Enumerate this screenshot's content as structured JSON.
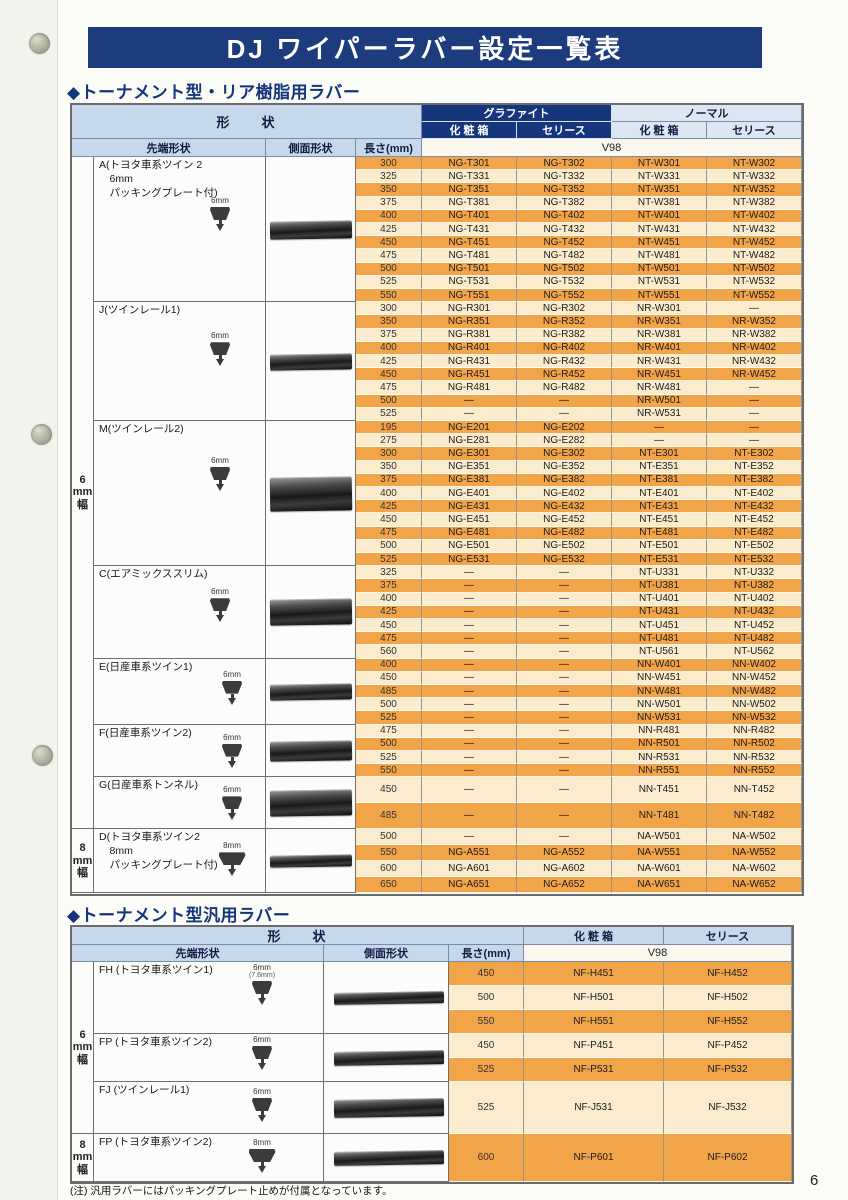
{
  "title": "DJ ワイパーラバー設定一覧表",
  "page_number": "6",
  "footnote": "(注) 汎用ラバーにはパッキングプレート止めが付属となっています。",
  "colors": {
    "banner_navy": "#1c3c7d",
    "graphite_header_navy": "#15357c",
    "header_light_blue": "#c8d8ec",
    "normal_header_light": "#dde7f3",
    "row_orange": "#f2a449",
    "row_cream": "#fbeccd"
  },
  "table1": {
    "section_title": "◆トーナメント型・リア樹脂用ラバー",
    "headers": {
      "shape": "形　　状",
      "tip_shape": "先端形状",
      "side_shape": "側面形状",
      "length": "長さ(mm)",
      "graphite": "グラファイト",
      "normal": "ノーマル",
      "box": "化 粧 箱",
      "cellophane": "セリース",
      "model": "V98"
    },
    "width_groups": [
      {
        "label_lines": [
          "6",
          "mm",
          "幅"
        ],
        "section_ids": [
          "A",
          "J",
          "M",
          "C",
          "E",
          "F",
          "G"
        ]
      },
      {
        "label_lines": [
          "8",
          "mm",
          "幅"
        ],
        "section_ids": [
          "D"
        ]
      }
    ],
    "sections": [
      {
        "id": "A",
        "label_lines": [
          "A(トヨタ車系ツイン 2",
          "　6mm",
          "　パッキングプレート付)"
        ],
        "tip_dim": "6mm",
        "rows": [
          [
            "300",
            "NG-T301",
            "NG-T302",
            "NT-W301",
            "NT-W302"
          ],
          [
            "325",
            "NG-T331",
            "NG-T332",
            "NT-W331",
            "NT-W332"
          ],
          [
            "350",
            "NG-T351",
            "NG-T352",
            "NT-W351",
            "NT-W352"
          ],
          [
            "375",
            "NG-T381",
            "NG-T382",
            "NT-W381",
            "NT-W382"
          ],
          [
            "400",
            "NG-T401",
            "NG-T402",
            "NT-W401",
            "NT-W402"
          ],
          [
            "425",
            "NG-T431",
            "NG-T432",
            "NT-W431",
            "NT-W432"
          ],
          [
            "450",
            "NG-T451",
            "NG-T452",
            "NT-W451",
            "NT-W452"
          ],
          [
            "475",
            "NG-T481",
            "NG-T482",
            "NT-W481",
            "NT-W482"
          ],
          [
            "500",
            "NG-T501",
            "NG-T502",
            "NT-W501",
            "NT-W502"
          ],
          [
            "525",
            "NG-T531",
            "NG-T532",
            "NT-W531",
            "NT-W532"
          ],
          [
            "550",
            "NG-T551",
            "NG-T552",
            "NT-W551",
            "NT-W552"
          ]
        ]
      },
      {
        "id": "J",
        "label_lines": [
          "J(ツインレール1)"
        ],
        "tip_dim": "6mm",
        "rows": [
          [
            "300",
            "NG-R301",
            "NG-R302",
            "NR-W301",
            "—"
          ],
          [
            "350",
            "NG-R351",
            "NG-R352",
            "NR-W351",
            "NR-W352"
          ],
          [
            "375",
            "NG-R381",
            "NG-R382",
            "NR-W381",
            "NR-W382"
          ],
          [
            "400",
            "NG-R401",
            "NG-R402",
            "NR-W401",
            "NR-W402"
          ],
          [
            "425",
            "NG-R431",
            "NG-R432",
            "NR-W431",
            "NR-W432"
          ],
          [
            "450",
            "NG-R451",
            "NG-R452",
            "NR-W451",
            "NR-W452"
          ],
          [
            "475",
            "NG-R481",
            "NG-R482",
            "NR-W481",
            "—"
          ],
          [
            "500",
            "—",
            "—",
            "NR-W501",
            "—"
          ],
          [
            "525",
            "—",
            "—",
            "NR-W531",
            "—"
          ]
        ]
      },
      {
        "id": "M",
        "label_lines": [
          "M(ツインレール2)"
        ],
        "tip_dim": "6mm",
        "rows": [
          [
            "195",
            "NG-E201",
            "NG-E202",
            "—",
            "—"
          ],
          [
            "275",
            "NG-E281",
            "NG-E282",
            "—",
            "—"
          ],
          [
            "300",
            "NG-E301",
            "NG-E302",
            "NT-E301",
            "NT-E302"
          ],
          [
            "350",
            "NG-E351",
            "NG-E352",
            "NT-E351",
            "NT-E352"
          ],
          [
            "375",
            "NG-E381",
            "NG-E382",
            "NT-E381",
            "NT-E382"
          ],
          [
            "400",
            "NG-E401",
            "NG-E402",
            "NT-E401",
            "NT-E402"
          ],
          [
            "425",
            "NG-E431",
            "NG-E432",
            "NT-E431",
            "NT-E432"
          ],
          [
            "450",
            "NG-E451",
            "NG-E452",
            "NT-E451",
            "NT-E452"
          ],
          [
            "475",
            "NG-E481",
            "NG-E482",
            "NT-E481",
            "NT-E482"
          ],
          [
            "500",
            "NG-E501",
            "NG-E502",
            "NT-E501",
            "NT-E502"
          ],
          [
            "525",
            "NG-E531",
            "NG-E532",
            "NT-E531",
            "NT-E532"
          ]
        ]
      },
      {
        "id": "C",
        "label_lines": [
          "C(エアミックススリム)"
        ],
        "tip_dim": "6mm",
        "rows": [
          [
            "325",
            "—",
            "—",
            "NT-U331",
            "NT-U332"
          ],
          [
            "375",
            "—",
            "—",
            "NT-U381",
            "NT-U382"
          ],
          [
            "400",
            "—",
            "—",
            "NT-U401",
            "NT-U402"
          ],
          [
            "425",
            "—",
            "—",
            "NT-U431",
            "NT-U432"
          ],
          [
            "450",
            "—",
            "—",
            "NT-U451",
            "NT-U452"
          ],
          [
            "475",
            "—",
            "—",
            "NT-U481",
            "NT-U482"
          ],
          [
            "560",
            "—",
            "—",
            "NT-U561",
            "NT-U562"
          ]
        ]
      },
      {
        "id": "E",
        "label_lines": [
          "E(日産車系ツイン1)"
        ],
        "tip_dim": "6mm",
        "rows": [
          [
            "400",
            "—",
            "—",
            "NN-W401",
            "NN-W402"
          ],
          [
            "450",
            "—",
            "—",
            "NN-W451",
            "NN-W452"
          ],
          [
            "485",
            "—",
            "—",
            "NN-W481",
            "NN-W482"
          ],
          [
            "500",
            "—",
            "—",
            "NN-W501",
            "NN-W502"
          ],
          [
            "525",
            "—",
            "—",
            "NN-W531",
            "NN-W532"
          ]
        ]
      },
      {
        "id": "F",
        "label_lines": [
          "F(日産車系ツイン2)"
        ],
        "tip_dim": "6mm",
        "rows": [
          [
            "475",
            "—",
            "—",
            "NN-R481",
            "NN-R482"
          ],
          [
            "500",
            "—",
            "—",
            "NN-R501",
            "NN-R502"
          ],
          [
            "525",
            "—",
            "—",
            "NN-R531",
            "NN-R532"
          ],
          [
            "550",
            "—",
            "—",
            "NN-R551",
            "NN-R552"
          ]
        ]
      },
      {
        "id": "G",
        "label_lines": [
          "G(日産車系トンネル)"
        ],
        "tip_dim": "6mm",
        "rows": [
          [
            "450",
            "—",
            "—",
            "NN-T451",
            "NN-T452"
          ],
          [
            "485",
            "—",
            "—",
            "NN-T481",
            "NN-T482"
          ]
        ]
      },
      {
        "id": "D",
        "label_lines": [
          "D(トヨタ車系ツイン2",
          "　8mm",
          "　パッキングプレート付)"
        ],
        "tip_dim": "8mm",
        "rows": [
          [
            "500",
            "—",
            "—",
            "NA-W501",
            "NA-W502"
          ],
          [
            "550",
            "NG-A551",
            "NG-A552",
            "NA-W551",
            "NA-W552"
          ],
          [
            "600",
            "NG-A601",
            "NG-A602",
            "NA-W601",
            "NA-W602"
          ],
          [
            "650",
            "NG-A651",
            "NG-A652",
            "NA-W651",
            "NA-W652"
          ]
        ]
      }
    ]
  },
  "table2": {
    "section_title": "◆トーナメント型汎用ラバー",
    "headers": {
      "shape": "形　　状",
      "tip_shape": "先端形状",
      "side_shape": "側面形状",
      "length": "長さ(mm)",
      "box": "化 粧 箱",
      "cellophane": "セリース",
      "model": "V98"
    },
    "width_groups": [
      {
        "label_lines": [
          "6",
          "mm",
          "幅"
        ],
        "section_ids": [
          "FH",
          "FP",
          "FJ"
        ]
      },
      {
        "label_lines": [
          "8",
          "mm",
          "幅"
        ],
        "section_ids": [
          "FP8"
        ]
      }
    ],
    "sections": [
      {
        "id": "FH",
        "label_lines": [
          "FH (トヨタ車系ツイン1)"
        ],
        "tip_dim": "6mm",
        "tip_dim_sub": "(7.6mm)",
        "rows": [
          [
            "450",
            "NF-H451",
            "NF-H452"
          ],
          [
            "500",
            "NF-H501",
            "NF-H502"
          ],
          [
            "550",
            "NF-H551",
            "NF-H552"
          ]
        ]
      },
      {
        "id": "FP",
        "label_lines": [
          "FP (トヨタ車系ツイン2)"
        ],
        "tip_dim": "6mm",
        "rows": [
          [
            "450",
            "NF-P451",
            "NF-P452"
          ],
          [
            "525",
            "NF-P531",
            "NF-P532"
          ]
        ]
      },
      {
        "id": "FJ",
        "label_lines": [
          "FJ (ツインレール1)"
        ],
        "tip_dim": "6mm",
        "rows": [
          [
            "525",
            "NF-J531",
            "NF-J532"
          ]
        ]
      },
      {
        "id": "FP8",
        "label_lines": [
          "FP (トヨタ車系ツイン2)"
        ],
        "tip_dim": "8mm",
        "rows": [
          [
            "600",
            "NF-P601",
            "NF-P602"
          ]
        ]
      }
    ]
  }
}
